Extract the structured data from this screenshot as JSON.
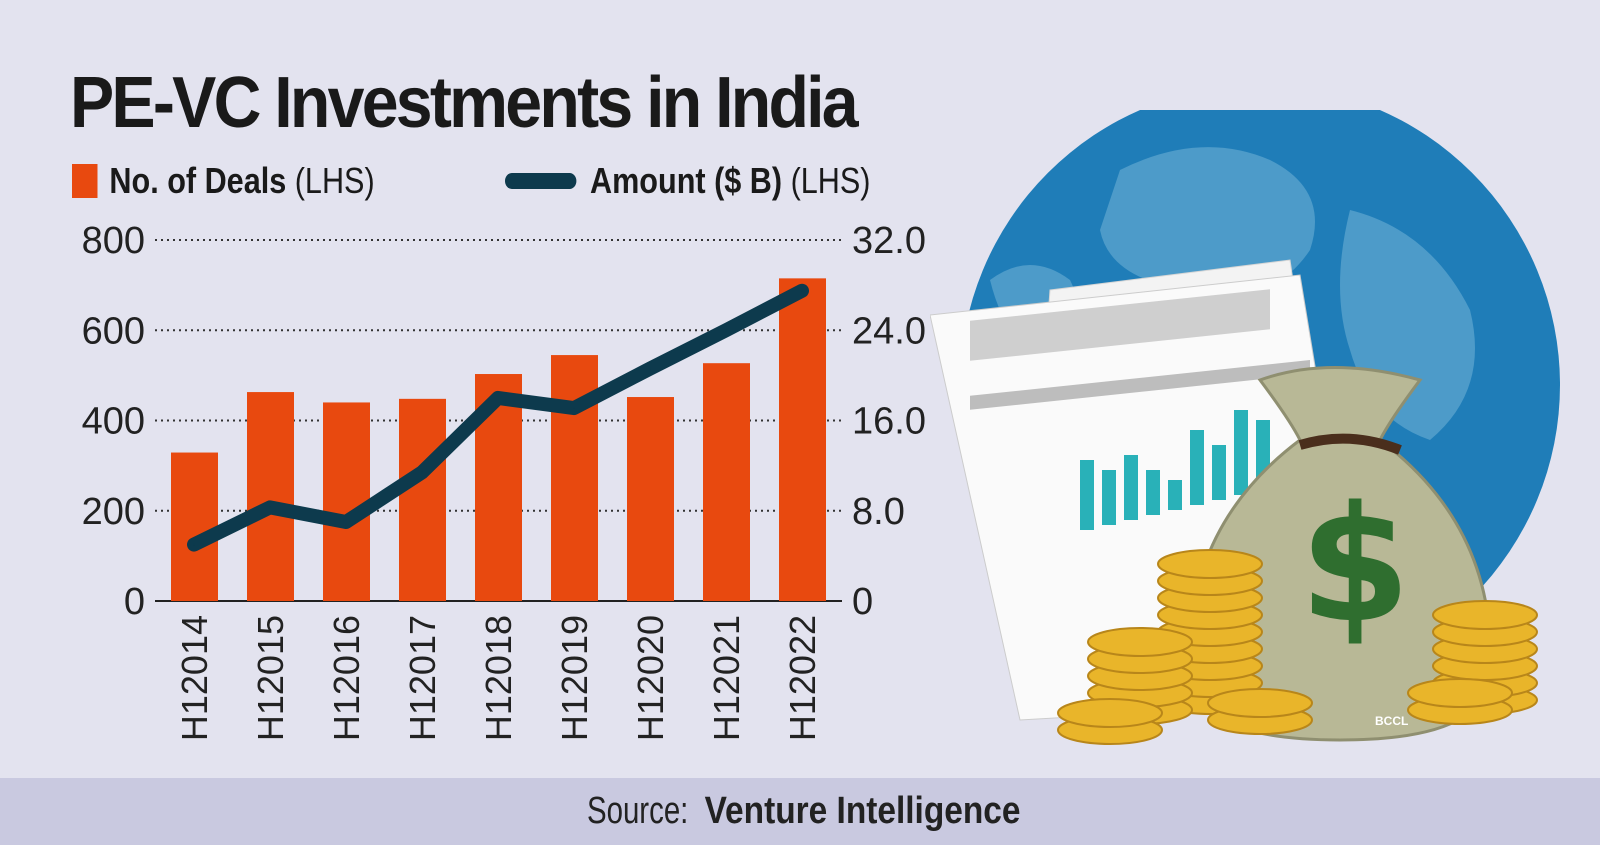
{
  "chart_data": {
    "type": "bar+line",
    "title": "PE-VC Investments in India",
    "categories": [
      "H12014",
      "H12015",
      "H12016",
      "H12017",
      "H12018",
      "H12019",
      "H12020",
      "H12021",
      "H12022"
    ],
    "series": [
      {
        "name": "No. of Deals",
        "axis_note": "(LHS)",
        "type": "bar",
        "color": "#e8490f",
        "values": [
          329,
          463,
          440,
          448,
          503,
          545,
          452,
          527,
          715
        ]
      },
      {
        "name": "Amount ($ B)",
        "axis_note": "(LHS)",
        "type": "line",
        "color": "#0d3a4d",
        "values": [
          5.0,
          8.3,
          7.0,
          11.4,
          18.0,
          17.1,
          20.6,
          24.0,
          27.5
        ]
      }
    ],
    "left_axis": {
      "ylim": [
        0,
        800
      ],
      "ticks": [
        "800",
        "600",
        "400",
        "200",
        "0"
      ]
    },
    "right_axis": {
      "ylim": [
        0,
        32
      ],
      "ticks": [
        "32.0",
        "24.0",
        "16.0",
        "8.0",
        "0"
      ]
    },
    "grid": "dotted horizontal",
    "legend_placement": "top-left"
  },
  "source": {
    "prefix": "Source:",
    "name": "Venture Intelligence"
  },
  "credit": "BCCL"
}
